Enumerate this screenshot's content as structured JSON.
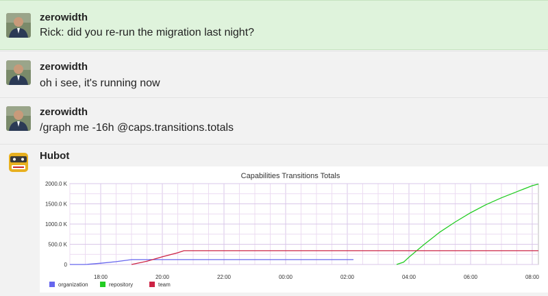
{
  "messages": [
    {
      "author": "zerowidth",
      "text": "Rick: did you re-run the migration last night?"
    },
    {
      "author": "zerowidth",
      "text": "oh i see, it's running now"
    },
    {
      "author": "zerowidth",
      "text": "/graph me -16h @caps.transitions.totals"
    },
    {
      "author": "Hubot",
      "text": ""
    }
  ],
  "icons": {
    "user_avatar": "user-avatar-icon",
    "bot_avatar": "hubot-avatar-icon"
  },
  "colors": {
    "highlight_bg": "#dff3dc",
    "organization": "#6666ee",
    "repository": "#22cc22",
    "team": "#cc2244"
  },
  "chart_data": {
    "type": "line",
    "title": "Capabilities Transitions Totals",
    "xlabel": "",
    "ylabel": "",
    "x_ticks": [
      "18:00",
      "20:00",
      "22:00",
      "00:00",
      "02:00",
      "04:00",
      "06:00",
      "08:00"
    ],
    "y_ticks": [
      "0",
      "500.0 K",
      "1000.0 K",
      "1500.0 K",
      "2000.0 K"
    ],
    "ylim": [
      0,
      2000
    ],
    "xlim_hours": [
      17,
      26.2
    ],
    "grid": true,
    "legend_position": "bottom-left",
    "series": [
      {
        "name": "organization",
        "color": "#6666ee",
        "points": [
          [
            17.0,
            0
          ],
          [
            17.5,
            0
          ],
          [
            18.0,
            30
          ],
          [
            18.5,
            70
          ],
          [
            19.0,
            120
          ],
          [
            26.2,
            120
          ]
        ]
      },
      {
        "name": "repository",
        "color": "#22cc22",
        "points": [
          [
            27.6,
            0
          ],
          [
            27.83,
            60
          ],
          [
            28.0,
            180
          ],
          [
            28.5,
            500
          ],
          [
            29.0,
            800
          ],
          [
            29.5,
            1050
          ],
          [
            30.0,
            1280
          ],
          [
            30.5,
            1480
          ],
          [
            31.0,
            1650
          ],
          [
            31.5,
            1800
          ],
          [
            32.0,
            1950
          ],
          [
            32.2,
            1990
          ]
        ]
      },
      {
        "name": "team",
        "color": "#cc2244",
        "points": [
          [
            19.0,
            0
          ],
          [
            19.5,
            80
          ],
          [
            20.0,
            190
          ],
          [
            20.5,
            290
          ],
          [
            20.7,
            340
          ],
          [
            32.2,
            340
          ]
        ]
      }
    ]
  }
}
